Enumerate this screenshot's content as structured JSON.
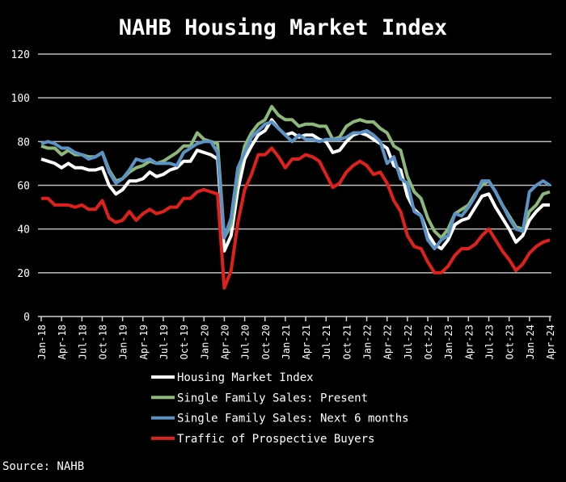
{
  "chart_data": {
    "type": "line",
    "title": "NAHB Housing Market Index",
    "source": "Source: NAHB",
    "xlabel": "",
    "ylabel": "",
    "ylim": [
      0,
      120
    ],
    "yticks": [
      0,
      20,
      40,
      60,
      80,
      100,
      120
    ],
    "grid": "horizontal",
    "legend_position": "bottom-center",
    "x": [
      "Jan-18",
      "Feb-18",
      "Mar-18",
      "Apr-18",
      "May-18",
      "Jun-18",
      "Jul-18",
      "Aug-18",
      "Sep-18",
      "Oct-18",
      "Nov-18",
      "Dec-18",
      "Jan-19",
      "Feb-19",
      "Mar-19",
      "Apr-19",
      "May-19",
      "Jun-19",
      "Jul-19",
      "Aug-19",
      "Sep-19",
      "Oct-19",
      "Nov-19",
      "Dec-19",
      "Jan-20",
      "Feb-20",
      "Mar-20",
      "Apr-20",
      "May-20",
      "Jun-20",
      "Jul-20",
      "Aug-20",
      "Sep-20",
      "Oct-20",
      "Nov-20",
      "Dec-20",
      "Jan-21",
      "Feb-21",
      "Mar-21",
      "Apr-21",
      "May-21",
      "Jun-21",
      "Jul-21",
      "Aug-21",
      "Sep-21",
      "Oct-21",
      "Nov-21",
      "Dec-21",
      "Jan-22",
      "Feb-22",
      "Mar-22",
      "Apr-22",
      "May-22",
      "Jun-22",
      "Jul-22",
      "Aug-22",
      "Sep-22",
      "Oct-22",
      "Nov-22",
      "Dec-22",
      "Jan-23",
      "Feb-23",
      "Mar-23",
      "Apr-23",
      "May-23",
      "Jun-23",
      "Jul-23",
      "Aug-23",
      "Sep-23",
      "Oct-23",
      "Nov-23",
      "Dec-23",
      "Jan-24",
      "Feb-24",
      "Mar-24",
      "Apr-24"
    ],
    "series": [
      {
        "name": "Housing Market Index",
        "color": "#ffffff",
        "values": [
          72,
          71,
          70,
          68,
          70,
          68,
          68,
          67,
          67,
          68,
          60,
          56,
          58,
          62,
          62,
          63,
          66,
          64,
          65,
          67,
          68,
          71,
          71,
          76,
          75,
          74,
          72,
          30,
          37,
          58,
          72,
          78,
          83,
          85,
          90,
          86,
          83,
          84,
          82,
          83,
          83,
          81,
          80,
          75,
          76,
          80,
          83,
          84,
          83,
          81,
          79,
          77,
          69,
          67,
          55,
          49,
          46,
          38,
          33,
          31,
          35,
          42,
          44,
          45,
          50,
          55,
          56,
          50,
          45,
          40,
          34,
          37,
          44,
          48,
          51,
          51
        ]
      },
      {
        "name": "Single Family Sales: Present",
        "color": "#8db87a",
        "values": [
          78,
          77,
          77,
          74,
          76,
          74,
          74,
          73,
          73,
          75,
          67,
          62,
          63,
          66,
          68,
          69,
          71,
          70,
          71,
          73,
          75,
          78,
          78,
          84,
          81,
          80,
          79,
          36,
          42,
          64,
          78,
          84,
          88,
          90,
          96,
          92,
          90,
          90,
          87,
          88,
          88,
          87,
          87,
          81,
          82,
          87,
          89,
          90,
          89,
          89,
          86,
          84,
          78,
          76,
          64,
          57,
          54,
          45,
          39,
          36,
          40,
          47,
          49,
          51,
          56,
          60,
          62,
          57,
          51,
          46,
          41,
          40,
          48,
          51,
          56,
          57
        ]
      },
      {
        "name": "Single Family Sales: Next 6 months",
        "color": "#5b93c7",
        "values": [
          79,
          80,
          79,
          77,
          77,
          75,
          74,
          72,
          73,
          75,
          66,
          61,
          63,
          67,
          72,
          71,
          72,
          70,
          70,
          70,
          69,
          75,
          77,
          79,
          80,
          80,
          75,
          36,
          45,
          68,
          75,
          82,
          85,
          88,
          89,
          86,
          83,
          80,
          83,
          81,
          81,
          80,
          81,
          81,
          81,
          82,
          84,
          84,
          85,
          83,
          80,
          70,
          73,
          63,
          61,
          48,
          46,
          35,
          31,
          35,
          37,
          47,
          46,
          50,
          55,
          62,
          62,
          57,
          51,
          45,
          40,
          39,
          57,
          60,
          62,
          60
        ]
      },
      {
        "name": "Traffic of Prospective Buyers",
        "color": "#e0201b",
        "values": [
          54,
          54,
          51,
          51,
          51,
          50,
          51,
          49,
          49,
          53,
          45,
          43,
          44,
          48,
          44,
          47,
          49,
          47,
          48,
          50,
          50,
          54,
          54,
          57,
          58,
          57,
          56,
          13,
          21,
          43,
          58,
          65,
          74,
          74,
          77,
          73,
          68,
          72,
          72,
          74,
          73,
          71,
          65,
          59,
          61,
          66,
          69,
          71,
          69,
          65,
          66,
          61,
          53,
          48,
          37,
          32,
          31,
          25,
          20,
          20,
          23,
          28,
          31,
          31,
          33,
          37,
          40,
          35,
          30,
          26,
          21,
          24,
          29,
          32,
          34,
          35
        ]
      }
    ]
  }
}
